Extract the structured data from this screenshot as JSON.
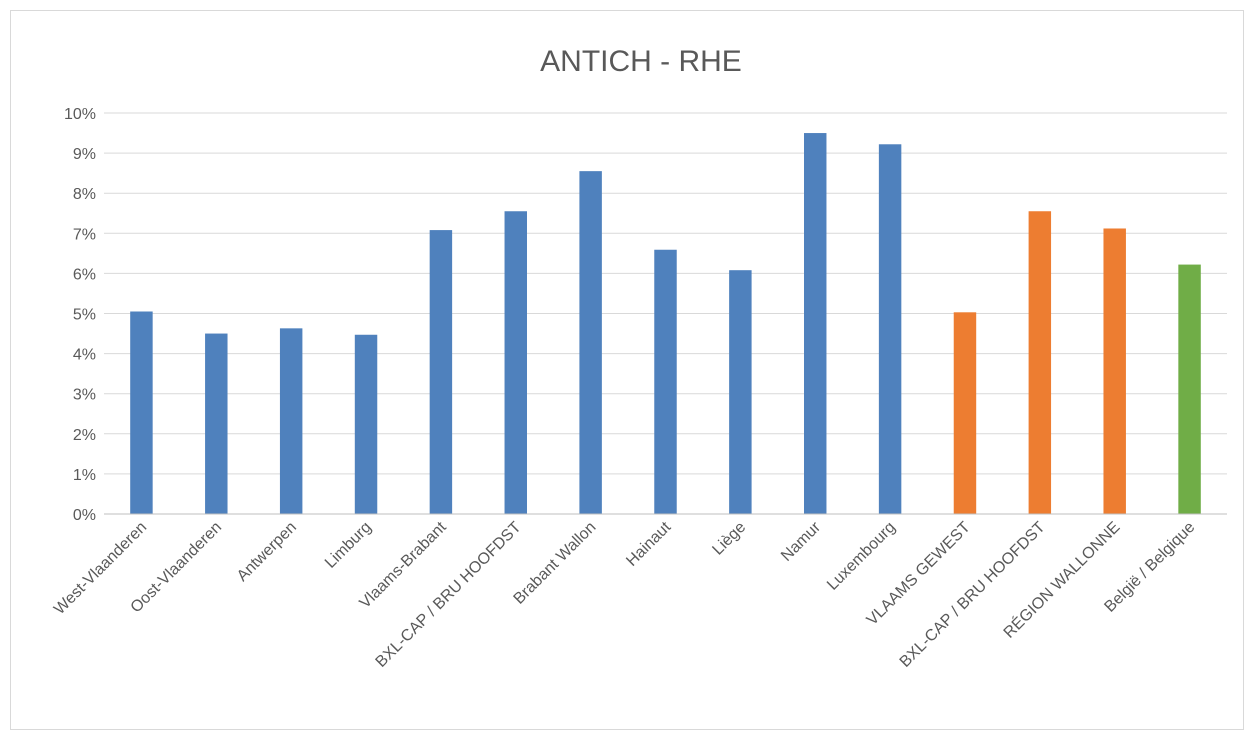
{
  "chart_data": {
    "type": "bar",
    "title": "ANTICH - RHE",
    "xlabel": "",
    "ylabel": "",
    "ylim": [
      0,
      10
    ],
    "y_tick_format": "%",
    "yticks": [
      "0%",
      "1%",
      "2%",
      "3%",
      "4%",
      "5%",
      "6%",
      "7%",
      "8%",
      "9%",
      "10%"
    ],
    "grid": true,
    "legend": "none",
    "categories": [
      "West-Vlaanderen",
      "Oost-Vlaanderen",
      "Antwerpen",
      "Limburg",
      "Vlaams-Brabant",
      "BXL-CAP / BRU HOOFDST",
      "Brabant Wallon",
      "Hainaut",
      "Liège",
      "Namur",
      "Luxembourg",
      "VLAAMS GEWEST",
      "BXL-CAP / BRU HOOFDST",
      "RÉGION WALLONNE",
      "België / Belgique"
    ],
    "values": [
      5.05,
      4.5,
      4.63,
      4.47,
      7.08,
      7.55,
      8.55,
      6.59,
      6.08,
      9.5,
      9.22,
      5.03,
      7.55,
      7.12,
      6.22
    ],
    "colors": [
      "#4f81bd",
      "#4f81bd",
      "#4f81bd",
      "#4f81bd",
      "#4f81bd",
      "#4f81bd",
      "#4f81bd",
      "#4f81bd",
      "#4f81bd",
      "#4f81bd",
      "#4f81bd",
      "#ed7d31",
      "#ed7d31",
      "#ed7d31",
      "#70ad47"
    ]
  }
}
